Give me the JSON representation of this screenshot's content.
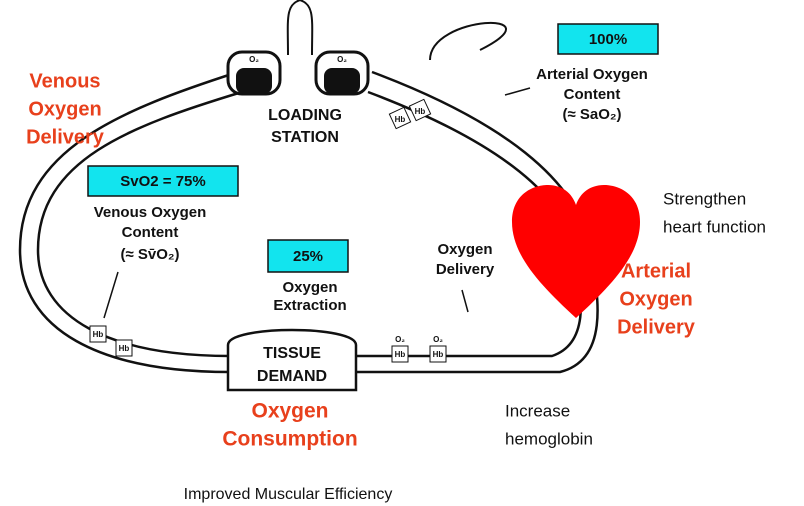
{
  "venous_delivery": [
    "Venous",
    "Oxygen",
    "Delivery"
  ],
  "arterial_saturation": "100%",
  "arterial_content": [
    "Arterial Oxygen",
    "Content",
    "(≈ SaO₂)"
  ],
  "loading_station": [
    "LOADING",
    "STATION"
  ],
  "venous_saturation": "SvO2 = 75%",
  "venous_content": [
    "Venous Oxygen",
    "Content",
    "(≈ Sv̄O₂)"
  ],
  "extraction_rate": "25%",
  "extraction": [
    "Oxygen",
    "Extraction"
  ],
  "oxygen_delivery": [
    "Oxygen",
    "Delivery"
  ],
  "tissue_demand": [
    "TISSUE",
    "DEMAND"
  ],
  "consumption": [
    "Oxygen",
    "Consumption"
  ],
  "heart_note": [
    "Strengthen",
    "heart function"
  ],
  "arterial_delivery": [
    "Arterial",
    "Oxygen",
    "Delivery"
  ],
  "hemoglobin_note": [
    "Increase",
    "hemoglobin"
  ],
  "muscle_note": "Improved Muscular Efficiency",
  "cart_labels": {
    "o2": "O₂",
    "hb": "Hb"
  }
}
